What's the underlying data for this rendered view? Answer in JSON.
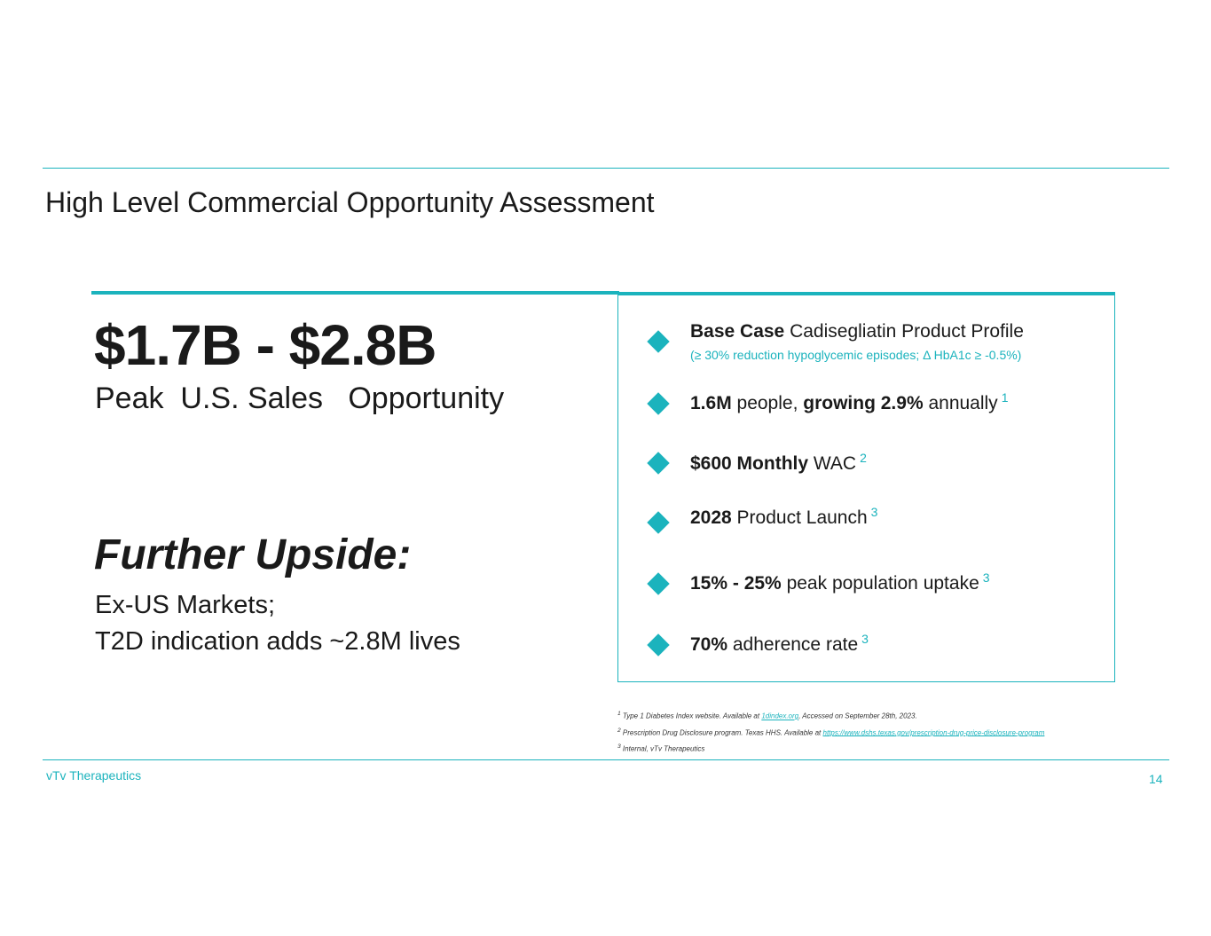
{
  "slide": {
    "title": "High Level Commercial Opportunity Assessment",
    "headline_value": "$1.7B - $2.8B",
    "headline_sub": "Peak  U.S. Sales   Opportunity",
    "upside_title": "Further Upside:",
    "upside_line1": "Ex-US Markets;",
    "upside_line2": "T2D indication adds ~2.8M lives"
  },
  "assumptions": {
    "base_case_bold": "Base Case",
    "base_case_text": " Cadisegliatin Product Profile",
    "base_case_sub": "(≥ 30% reduction hypoglycemic episodes; Δ HbA1c ≥ -0.5%)",
    "people_bold": "1.6M",
    "people_text1": " people, ",
    "people_bold2": "growing 2.9%",
    "people_text2": " annually",
    "people_ref": "1",
    "wac_bold": "$600 Monthly",
    "wac_text": " WAC",
    "wac_ref": "2",
    "launch_bold": "2028",
    "launch_text": " Product Launch",
    "launch_ref": "3",
    "uptake_bold": "15% - 25%",
    "uptake_text": " peak population uptake",
    "uptake_ref": "3",
    "adherence_bold": "70%",
    "adherence_text": " adherence rate",
    "adherence_ref": "3"
  },
  "footnotes": {
    "fn1_mark": "1",
    "fn1_text": " Type 1 Diabetes Index website. Available at ",
    "fn1_link": "1dindex.org",
    "fn1_tail": ", Accessed on September 28th, 2023.",
    "fn2_mark": "2",
    "fn2_text": " Prescription Drug Disclosure program. Texas HHS. Available at ",
    "fn2_link": "https://www.dshs.texas.gov/prescription-drug-price-disclosure-program",
    "fn3_mark": "3",
    "fn3_text": " Internal, vTv Therapeutics"
  },
  "footer": {
    "company": "vTv Therapeutics",
    "page_number": "14"
  },
  "colors": {
    "accent": "#1bb3bd",
    "text": "#1a1a1a"
  },
  "icons": {
    "bullet": "diamond-icon"
  }
}
